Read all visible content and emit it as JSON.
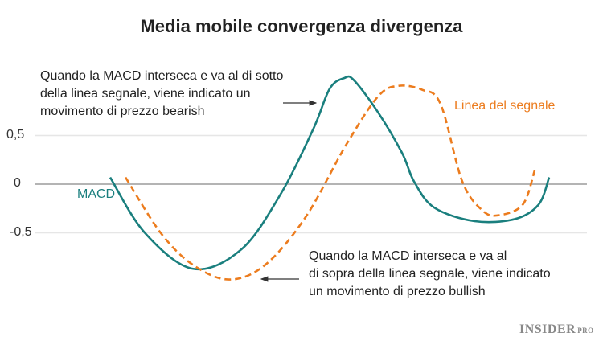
{
  "chart_data": {
    "type": "line",
    "title": "Media mobile convergenza divergenza",
    "xlabel": "",
    "ylabel": "",
    "ylim": [
      -1.1,
      1.2
    ],
    "yticks": [
      "0,5",
      "0",
      "-0,5"
    ],
    "ytick_values": [
      0.5,
      0,
      -0.5
    ],
    "grid": true,
    "series": [
      {
        "name": "MACD",
        "color": "#1a7f7e",
        "style": "solid",
        "x": [
          0,
          7.9,
          18.9,
          29.9,
          39,
          46.3,
          50,
          53.3,
          55.5,
          61,
          66.5,
          69.2,
          73.8,
          83,
          92.1,
          97.6,
          100
        ],
        "values": [
          0.07,
          -0.5,
          -0.87,
          -0.67,
          -0.09,
          0.57,
          0.98,
          1.09,
          1.07,
          0.74,
          0.32,
          0.03,
          -0.24,
          -0.38,
          -0.36,
          -0.21,
          0.07
        ]
      },
      {
        "name": "Linea del segnale",
        "color": "#ec7c1e",
        "style": "dashed",
        "x": [
          3.5,
          11.5,
          18.9,
          27.1,
          35.3,
          44.5,
          53.7,
          61,
          65.6,
          71.1,
          75.3,
          80.2,
          84.8,
          88.5,
          94,
          96.7
        ],
        "values": [
          0.07,
          -0.5,
          -0.83,
          -0.98,
          -0.83,
          -0.34,
          0.4,
          0.9,
          1.01,
          0.97,
          0.82,
          0.03,
          -0.27,
          -0.32,
          -0.21,
          0.14
        ]
      }
    ],
    "annotations": {
      "bearish": [
        "Quando la MACD interseca e va al di sotto",
        "della linea segnale, viene indicato un",
        "movimento di prezzo bearish"
      ],
      "bullish": [
        "Quando la MACD interseca e va al",
        "di sopra della linea segnale, viene indicato",
        "un movimento di prezzo bullish"
      ]
    }
  },
  "logo": {
    "main": "INSIDER",
    "sub": "PRO"
  }
}
